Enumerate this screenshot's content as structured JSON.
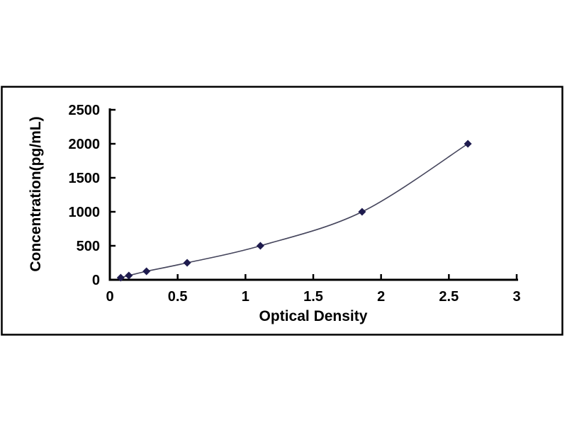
{
  "page": {
    "background_color": "#ffffff",
    "frame_border_color": "#000000",
    "description": "ELISA standard curve plot"
  },
  "chart_data": {
    "type": "line",
    "title": "",
    "xlabel": "Optical Density",
    "ylabel": "Concentration(pg/mL)",
    "x": [
      0.08,
      0.14,
      0.27,
      0.57,
      1.11,
      1.86,
      2.64
    ],
    "y": [
      31.25,
      62.5,
      125,
      250,
      500,
      1000,
      2000
    ],
    "xlim": [
      0,
      3
    ],
    "ylim": [
      0,
      2500
    ],
    "x_tick_values": [
      0,
      0.5,
      1,
      1.5,
      2,
      2.5,
      3
    ],
    "x_tick_labels": [
      "0",
      "0.5",
      "1",
      "1.5",
      "2",
      "2.5",
      "3"
    ],
    "y_tick_values": [
      0,
      500,
      1000,
      1500,
      2000,
      2500
    ],
    "y_tick_labels": [
      "0",
      "500",
      "1000",
      "1500",
      "2000",
      "2500"
    ],
    "grid": false,
    "legend": "none",
    "marker": "diamond",
    "marker_color": "#1e1b4e",
    "line_color": "#45455c",
    "axis_color": "#000000",
    "curve_style": "smooth-spline"
  }
}
